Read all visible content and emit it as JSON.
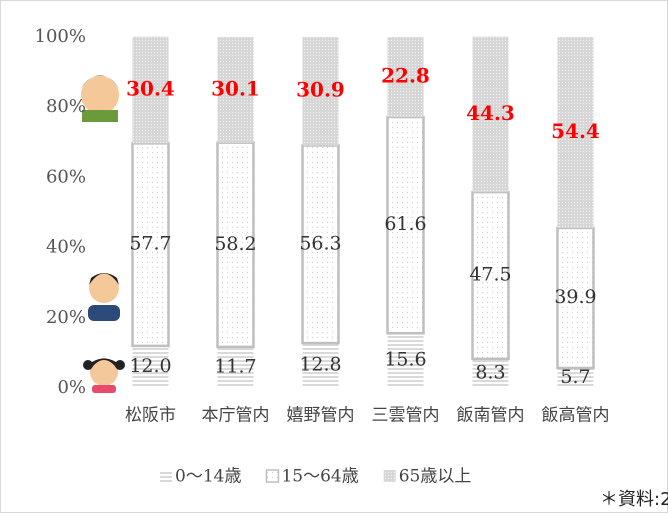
{
  "chart_data": {
    "type": "stacked_bar",
    "categories": [
      "松阪市",
      "本庁管内",
      "嬉野管内",
      "三雲管内",
      "飯南管内",
      "飯高管内"
    ],
    "series": [
      {
        "name": "0～14歳",
        "values": [
          12,
          11.7,
          12.8,
          15.6,
          8.3,
          5.7
        ],
        "value_labels": [
          "12.0",
          "11.7",
          "12.8",
          "15.6",
          "8.3",
          "5.7"
        ],
        "color": "#d9d9d9"
      },
      {
        "name": "15～64歳",
        "values": [
          57.7,
          58.2,
          56.3,
          61.6,
          47.5,
          39.9
        ],
        "value_labels": [
          "57.7",
          "58.2",
          "56.3",
          "61.6",
          "47.5",
          "39.9"
        ],
        "color": "#bfbfbf"
      },
      {
        "name": "65歳以上",
        "values": [
          30.4,
          30.1,
          30.9,
          22.8,
          44.3,
          54.4
        ],
        "value_labels": [
          "30.4",
          "30.1",
          "30.9",
          "22.8",
          "44.3",
          "54.4"
        ],
        "color": "#d0d0d0"
      }
    ],
    "ylim": [
      0,
      100
    ],
    "yticks": [
      {
        "value": 0,
        "label": "0%"
      },
      {
        "value": 20,
        "label": "20%"
      },
      {
        "value": 40,
        "label": "40%"
      },
      {
        "value": 60,
        "label": "60%"
      },
      {
        "value": 80,
        "label": "80%"
      },
      {
        "value": 100,
        "label": "100%"
      }
    ],
    "legend": "bottom",
    "source": "＊資料:2"
  }
}
